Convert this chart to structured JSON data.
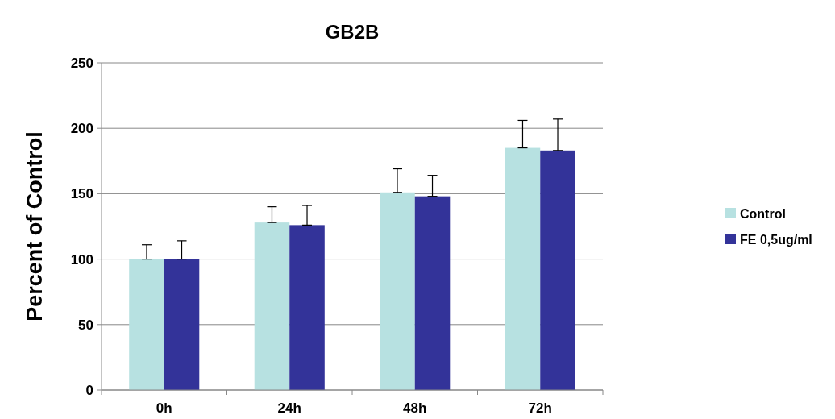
{
  "chart_data": {
    "type": "bar",
    "title": "GB2B",
    "ylabel": "Percent of Control",
    "categories": [
      "0h",
      "24h",
      "48h",
      "72h"
    ],
    "series": [
      {
        "name": "Control",
        "color": "#b7e1e1",
        "values": [
          100,
          128,
          151,
          185
        ],
        "errors": [
          [
            100,
            111
          ],
          [
            128,
            140
          ],
          [
            151,
            169
          ],
          [
            185,
            206
          ]
        ]
      },
      {
        "name": "FE 0,5ug/ml",
        "color": "#333399",
        "values": [
          100,
          126,
          148,
          183
        ],
        "errors": [
          [
            100,
            114
          ],
          [
            126,
            141
          ],
          [
            148,
            164
          ],
          [
            183,
            207
          ]
        ]
      }
    ],
    "ylim": [
      0,
      250
    ],
    "yticks": [
      0,
      50,
      100,
      150,
      200,
      250
    ],
    "grid": "y",
    "legend": "right"
  }
}
